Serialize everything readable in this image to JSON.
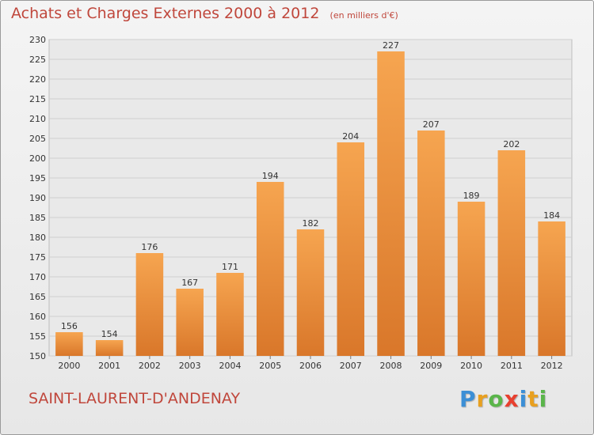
{
  "chart_data": {
    "type": "bar",
    "title": "Achats et Charges Externes 2000 à 2012",
    "subtitle": "(en milliers d'€)",
    "categories": [
      "2000",
      "2001",
      "2002",
      "2003",
      "2004",
      "2005",
      "2006",
      "2007",
      "2008",
      "2009",
      "2010",
      "2011",
      "2012"
    ],
    "values": [
      156,
      154,
      176,
      167,
      171,
      194,
      182,
      204,
      227,
      207,
      189,
      202,
      184
    ],
    "ylim": [
      150,
      230
    ],
    "yticks": [
      150,
      155,
      160,
      165,
      170,
      175,
      180,
      185,
      190,
      195,
      200,
      205,
      210,
      215,
      220,
      225,
      230
    ],
    "grid": true,
    "bar_color": "#f0a04b"
  },
  "commune": "SAINT-LAURENT-D'ANDENAY",
  "logo": {
    "letters": [
      "P",
      "r",
      "o",
      "x",
      "i",
      "t",
      "i"
    ],
    "colors": [
      "#3c8fd6",
      "#e8a020",
      "#5ab54a",
      "#e8402f",
      "#3c8fd6",
      "#e8a020",
      "#5ab54a"
    ]
  }
}
